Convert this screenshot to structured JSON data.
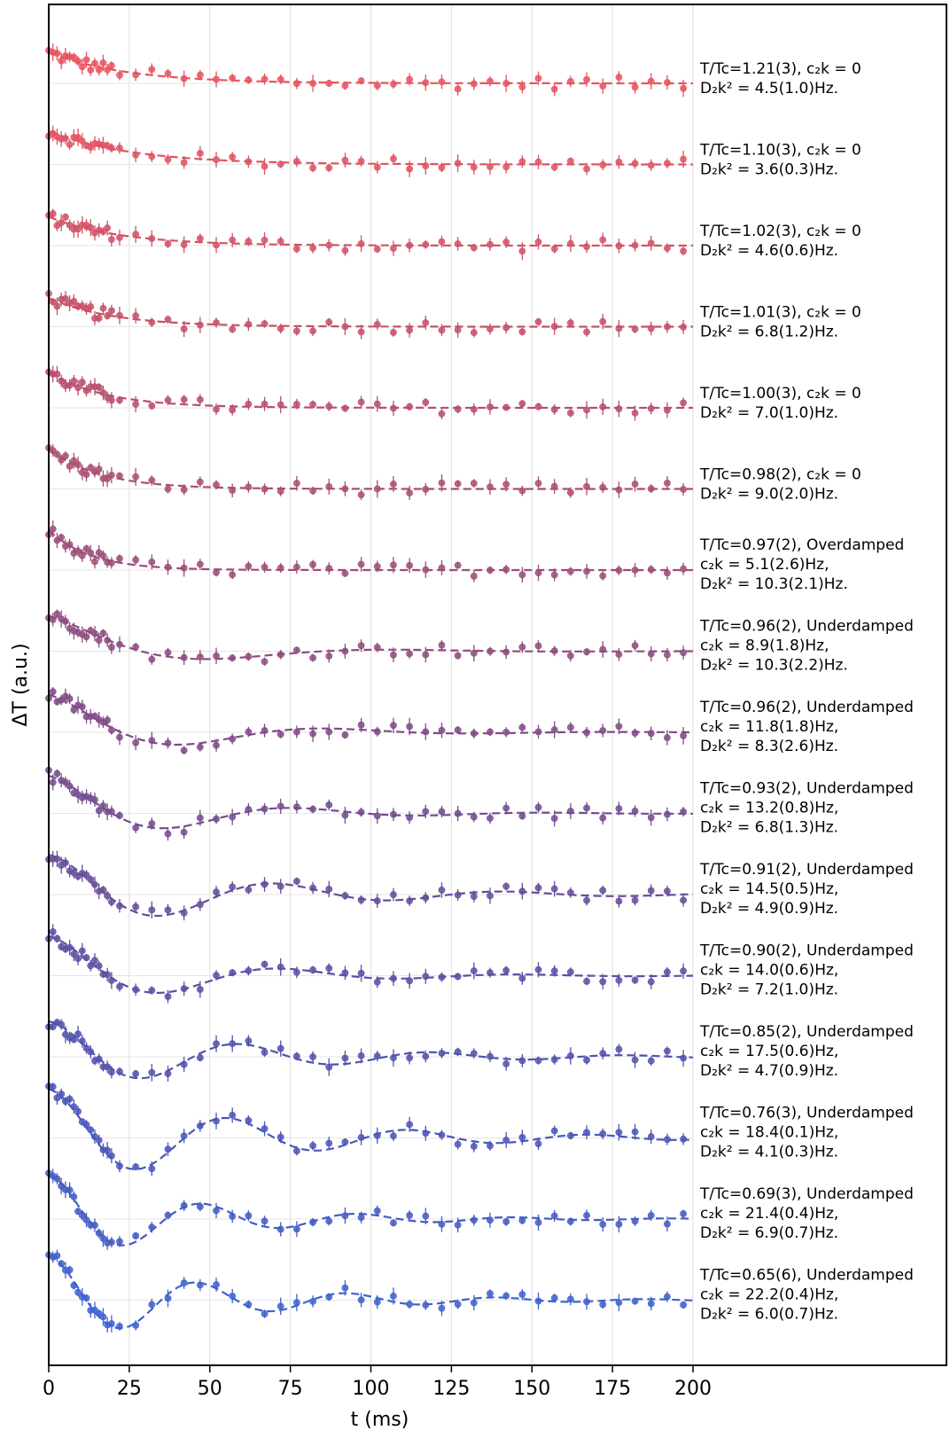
{
  "chart_data": {
    "type": "line",
    "xlabel": "t (ms)",
    "ylabel": "ΔT (a.u.)",
    "xlim": [
      0,
      200
    ],
    "x_ticks": [
      0,
      25,
      50,
      75,
      100,
      125,
      150,
      175,
      200
    ],
    "grid": "vertical",
    "legend": "none",
    "marker": "points with error bars, dashed fit curve",
    "series": [
      {
        "annotation": [
          "T/Tc=1.21(3), c₂k = 0",
          "D₂k² = 4.5(1.0)Hz."
        ],
        "color": "#e8545f",
        "regime": "decay",
        "amp": 1.4,
        "tau": 24
      },
      {
        "annotation": [
          "T/Tc=1.10(3), c₂k = 0",
          "D₂k² = 3.6(0.3)Hz."
        ],
        "color": "#de5362",
        "regime": "decay",
        "amp": 1.5,
        "tau": 26
      },
      {
        "annotation": [
          "T/Tc=1.02(3), c₂k = 0",
          "D₂k² = 4.6(0.6)Hz."
        ],
        "color": "#d25266",
        "regime": "decay",
        "amp": 1.3,
        "tau": 22
      },
      {
        "annotation": [
          "T/Tc=1.01(3), c₂k = 0",
          "D₂k² = 6.8(1.2)Hz."
        ],
        "color": "#c55069",
        "regime": "decay",
        "amp": 1.3,
        "tau": 20
      },
      {
        "annotation": [
          "T/Tc=1.00(3), c₂k = 0",
          "D₂k² = 7.0(1.0)Hz."
        ],
        "color": "#b84f6d",
        "regime": "decay",
        "amp": 1.6,
        "tau": 18
      },
      {
        "annotation": [
          "T/Tc=0.98(2), c₂k = 0",
          "D₂k² = 9.0(2.0)Hz."
        ],
        "color": "#aa4e72",
        "regime": "decay",
        "amp": 1.8,
        "tau": 16
      },
      {
        "annotation": [
          "T/Tc=0.97(2), Overdamped",
          "c₂k = 5.1(2.6)Hz,",
          "D₂k² = 10.3(2.1)Hz."
        ],
        "color": "#9c4d78",
        "regime": "decay",
        "amp": 1.8,
        "tau": 13
      },
      {
        "annotation": [
          "T/Tc=0.96(2), Underdamped",
          "c₂k = 8.9(1.8)Hz,",
          "D₂k² = 10.3(2.2)Hz."
        ],
        "color": "#8e4c7f",
        "regime": "osc",
        "amp": 1.6,
        "tau": 35,
        "omega": 0.055
      },
      {
        "annotation": [
          "T/Tc=0.96(2), Underdamped",
          "c₂k = 11.8(1.8)Hz,",
          "D₂k² = 8.3(2.6)Hz."
        ],
        "color": "#804b87",
        "regime": "osc",
        "amp": 1.7,
        "tau": 38,
        "omega": 0.07
      },
      {
        "annotation": [
          "T/Tc=0.93(2), Underdamped",
          "c₂k = 13.2(0.8)Hz,",
          "D₂k² = 6.8(1.3)Hz."
        ],
        "color": "#734c90",
        "regime": "osc",
        "amp": 1.7,
        "tau": 40,
        "omega": 0.08
      },
      {
        "annotation": [
          "T/Tc=0.91(2), Underdamped",
          "c₂k = 14.5(0.5)Hz,",
          "D₂k² = 4.9(0.9)Hz."
        ],
        "color": "#674d99",
        "regime": "osc",
        "amp": 1.8,
        "tau": 55,
        "omega": 0.088
      },
      {
        "annotation": [
          "T/Tc=0.90(2), Underdamped",
          "c₂k = 14.0(0.6)Hz,",
          "D₂k² = 7.2(1.0)Hz."
        ],
        "color": "#5c4fa3",
        "regime": "osc",
        "amp": 1.8,
        "tau": 42,
        "omega": 0.085
      },
      {
        "annotation": [
          "T/Tc=0.85(2), Underdamped",
          "c₂k = 17.5(0.6)Hz,",
          "D₂k² = 4.7(0.9)Hz."
        ],
        "color": "#5252ad",
        "regime": "osc",
        "amp": 1.6,
        "tau": 58,
        "omega": 0.105
      },
      {
        "annotation": [
          "T/Tc=0.76(3), Underdamped",
          "c₂k = 18.4(0.1)Hz,",
          "D₂k² = 4.1(0.3)Hz."
        ],
        "color": "#4a56b8",
        "regime": "osc",
        "amp": 2.2,
        "tau": 62,
        "omega": 0.112
      },
      {
        "annotation": [
          "T/Tc=0.69(3), Underdamped",
          "c₂k = 21.4(0.4)Hz,",
          "D₂k² = 6.9(0.7)Hz."
        ],
        "color": "#445cc3",
        "regime": "osc",
        "amp": 2.0,
        "tau": 45,
        "omega": 0.13
      },
      {
        "annotation": [
          "T/Tc=0.65(6), Underdamped",
          "c₂k = 22.2(0.4)Hz,",
          "D₂k² = 6.0(0.7)Hz."
        ],
        "color": "#3f62ce",
        "regime": "osc",
        "amp": 2.0,
        "tau": 50,
        "omega": 0.135
      }
    ]
  }
}
